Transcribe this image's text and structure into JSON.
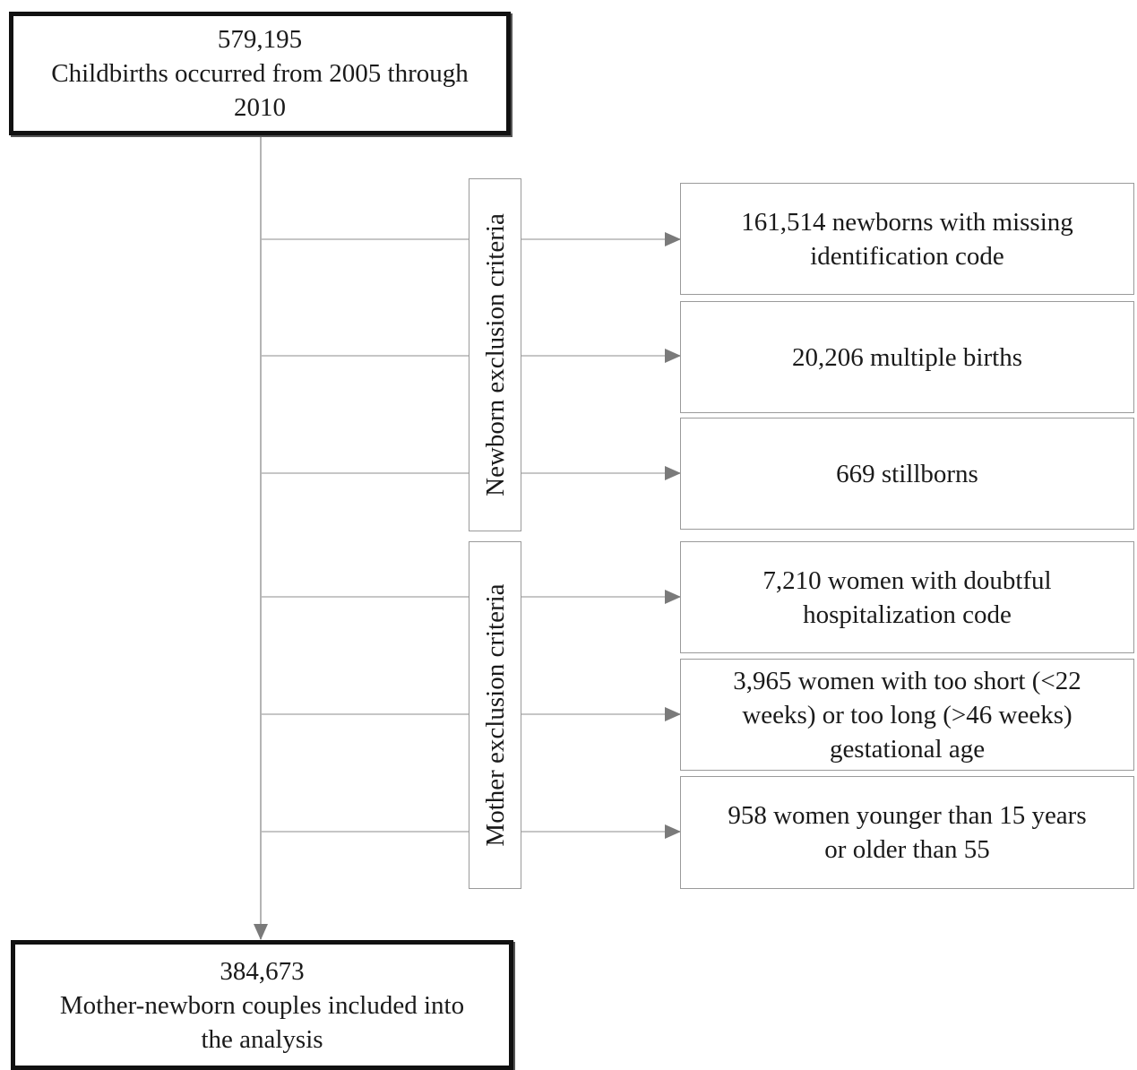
{
  "top_box": {
    "count": "579,195",
    "line1": "Childbirths occurred from 2005 through",
    "line2": "2010"
  },
  "groups": {
    "newborn": "Newborn exclusion criteria",
    "mother": "Mother exclusion criteria"
  },
  "exclusions": [
    {
      "lines": [
        "161,514 newborns with missing",
        "identification code"
      ]
    },
    {
      "lines": [
        "20,206 multiple births"
      ]
    },
    {
      "lines": [
        "669 stillborns"
      ]
    },
    {
      "lines": [
        "7,210 women with doubtful",
        "hospitalization code"
      ]
    },
    {
      "lines": [
        "3,965 women with too short (<22",
        "weeks) or too long (>46 weeks)",
        "gestational age"
      ]
    },
    {
      "lines": [
        "958 women younger than 15 years",
        "or older than 55"
      ]
    }
  ],
  "bottom_box": {
    "count": "384,673",
    "line1": "Mother-newborn couples included into",
    "line2": "the analysis"
  },
  "colors": {
    "line": "#b4b4b4",
    "arrow": "#7a7a7a",
    "bold_border": "#111111",
    "thin_border": "#9a9a9a"
  }
}
